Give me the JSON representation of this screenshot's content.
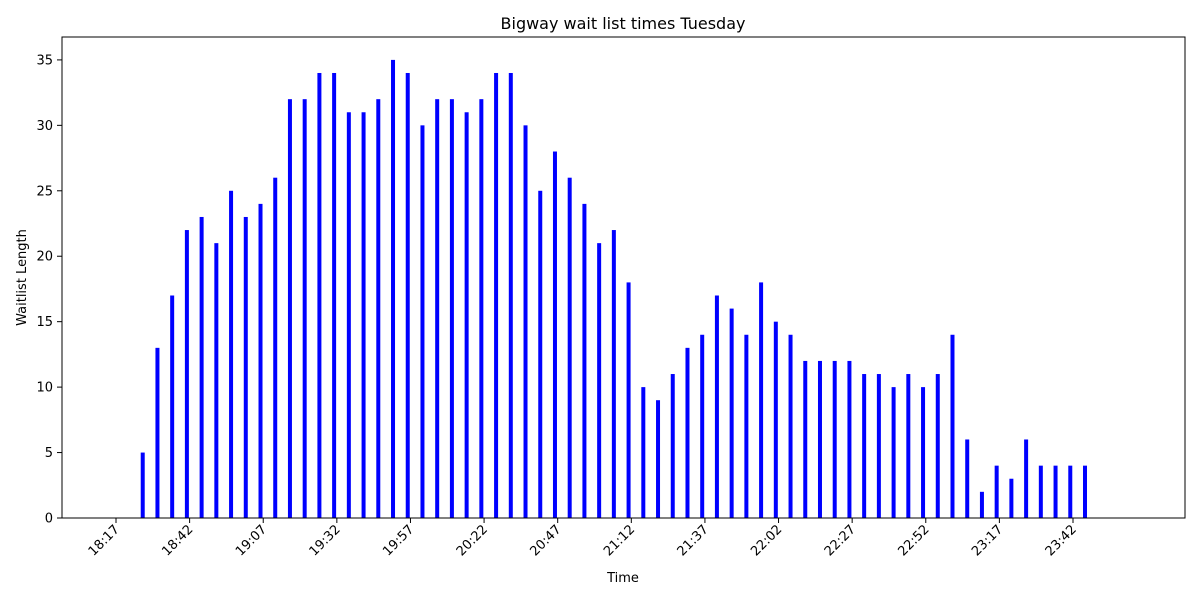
{
  "chart_data": {
    "type": "bar",
    "title": "Bigway wait list times Tuesday",
    "xlabel": "Time",
    "ylabel": "Waitlist Length",
    "bar_color": "#0000ff",
    "grid": false,
    "ylim": [
      0,
      36.75
    ],
    "y_ticks": [
      0,
      5,
      10,
      15,
      20,
      25,
      30,
      35
    ],
    "x_ticks": [
      "18:17",
      "18:42",
      "19:07",
      "19:32",
      "19:57",
      "20:22",
      "20:47",
      "21:12",
      "21:37",
      "22:02",
      "22:27",
      "22:52",
      "23:17",
      "23:42"
    ],
    "x_start": "18:17",
    "x_end": "23:42",
    "tick_step_minutes": 25,
    "sample_interval_minutes": 5,
    "series": [
      {
        "x": [
          "18:17",
          "18:22",
          "18:27",
          "18:32",
          "18:37",
          "18:42",
          "18:47",
          "18:52",
          "18:57",
          "19:02",
          "19:07",
          "19:12",
          "19:17",
          "19:22",
          "19:27",
          "19:32",
          "19:37",
          "19:42",
          "19:47",
          "19:52",
          "19:57",
          "20:02",
          "20:07",
          "20:12",
          "20:17",
          "20:22",
          "20:27",
          "20:32",
          "20:37",
          "20:42",
          "20:47",
          "20:52",
          "20:57",
          "21:02",
          "21:07",
          "21:12",
          "21:17",
          "21:22",
          "21:27",
          "21:32",
          "21:37",
          "21:42",
          "21:47",
          "21:52",
          "21:57",
          "22:02",
          "22:07",
          "22:12",
          "22:17",
          "22:22",
          "22:27",
          "22:32",
          "22:37",
          "22:42",
          "22:47",
          "22:52",
          "22:57",
          "23:02",
          "23:07",
          "23:12",
          "23:17",
          "23:22",
          "23:27",
          "23:32",
          "23:37",
          "23:42"
        ],
        "values": [
          0,
          5,
          13,
          17,
          22,
          23,
          21,
          25,
          23,
          24,
          26,
          32,
          32,
          34,
          34,
          31,
          31,
          32,
          35,
          34,
          30,
          32,
          32,
          31,
          32,
          34,
          34,
          30,
          25,
          28,
          26,
          24,
          21,
          22,
          18,
          10,
          9,
          11,
          13,
          14,
          17,
          16,
          14,
          18,
          15,
          14,
          12,
          12,
          12,
          12,
          11,
          11,
          10,
          11,
          10,
          11,
          14,
          6,
          2,
          4,
          3,
          6,
          4,
          4,
          4,
          4
        ]
      }
    ]
  }
}
